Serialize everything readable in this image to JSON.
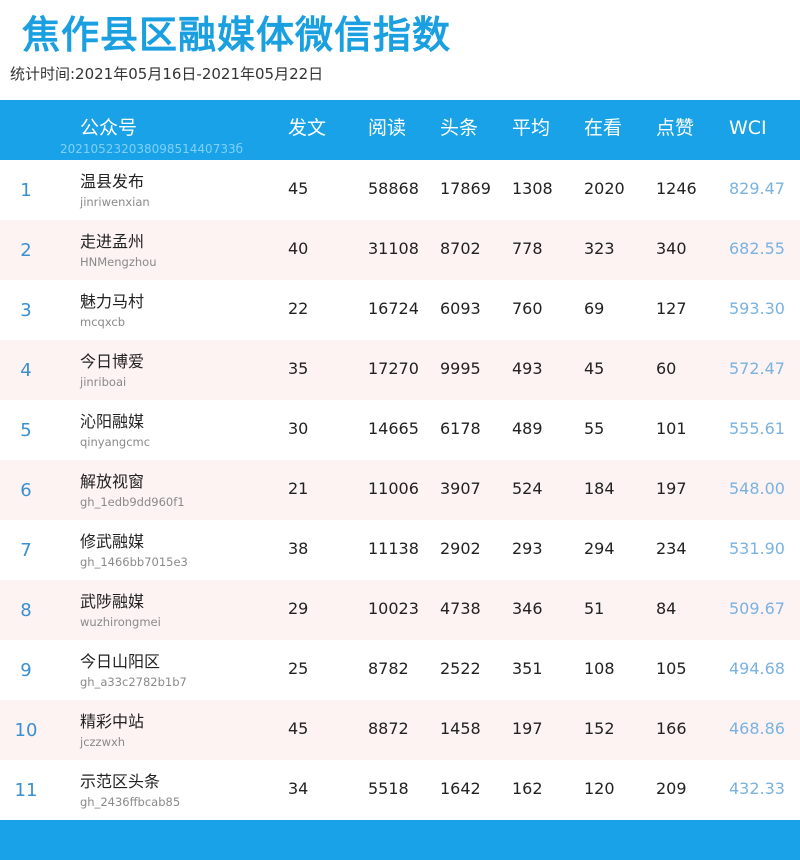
{
  "title": "焦作县区融媒体微信指数",
  "period": "统计时间:2021年05月16日-2021年05月22日",
  "header": {
    "account": "公众号",
    "posts": "发文",
    "reads": "阅读",
    "headline": "头条",
    "average": "平均",
    "watching": "在看",
    "likes": "点赞",
    "wci": "WCI",
    "watermark": "20210523203809851440733б"
  },
  "rows": [
    {
      "rank": "1",
      "name": "温县发布",
      "account": "jinriwenxian",
      "posts": "45",
      "reads": "58868",
      "headline": "17869",
      "average": "1308",
      "watching": "2020",
      "likes": "1246",
      "wci": "829.47"
    },
    {
      "rank": "2",
      "name": "走进孟州",
      "account": "HNMengzhou",
      "posts": "40",
      "reads": "31108",
      "headline": "8702",
      "average": "778",
      "watching": "323",
      "likes": "340",
      "wci": "682.55"
    },
    {
      "rank": "3",
      "name": "魅力马村",
      "account": "mcqxcb",
      "posts": "22",
      "reads": "16724",
      "headline": "6093",
      "average": "760",
      "watching": "69",
      "likes": "127",
      "wci": "593.30"
    },
    {
      "rank": "4",
      "name": "今日博爱",
      "account": "jinriboai",
      "posts": "35",
      "reads": "17270",
      "headline": "9995",
      "average": "493",
      "watching": "45",
      "likes": "60",
      "wci": "572.47"
    },
    {
      "rank": "5",
      "name": "沁阳融媒",
      "account": "qinyangcmc",
      "posts": "30",
      "reads": "14665",
      "headline": "6178",
      "average": "489",
      "watching": "55",
      "likes": "101",
      "wci": "555.61"
    },
    {
      "rank": "6",
      "name": "解放视窗",
      "account": "gh_1edb9dd960f1",
      "posts": "21",
      "reads": "11006",
      "headline": "3907",
      "average": "524",
      "watching": "184",
      "likes": "197",
      "wci": "548.00"
    },
    {
      "rank": "7",
      "name": "修武融媒",
      "account": "gh_1466bb7015e3",
      "posts": "38",
      "reads": "11138",
      "headline": "2902",
      "average": "293",
      "watching": "294",
      "likes": "234",
      "wci": "531.90"
    },
    {
      "rank": "8",
      "name": "武陟融媒",
      "account": "wuzhirongmei",
      "posts": "29",
      "reads": "10023",
      "headline": "4738",
      "average": "346",
      "watching": "51",
      "likes": "84",
      "wci": "509.67"
    },
    {
      "rank": "9",
      "name": "今日山阳区",
      "account": "gh_a33c2782b1b7",
      "posts": "25",
      "reads": "8782",
      "headline": "2522",
      "average": "351",
      "watching": "108",
      "likes": "105",
      "wci": "494.68"
    },
    {
      "rank": "10",
      "name": "精彩中站",
      "account": "jczzwxh",
      "posts": "45",
      "reads": "8872",
      "headline": "1458",
      "average": "197",
      "watching": "152",
      "likes": "166",
      "wci": "468.86"
    },
    {
      "rank": "11",
      "name": "示范区头条",
      "account": "gh_2436ffbcab85",
      "posts": "34",
      "reads": "5518",
      "headline": "1642",
      "average": "162",
      "watching": "120",
      "likes": "209",
      "wci": "432.33"
    }
  ],
  "colors": {
    "accent": "#19a2e7",
    "title": "#1a9fe0",
    "row_alt": "#fdf3f3",
    "rank": "#3a8fd0",
    "wci": "#7ab2e0"
  }
}
